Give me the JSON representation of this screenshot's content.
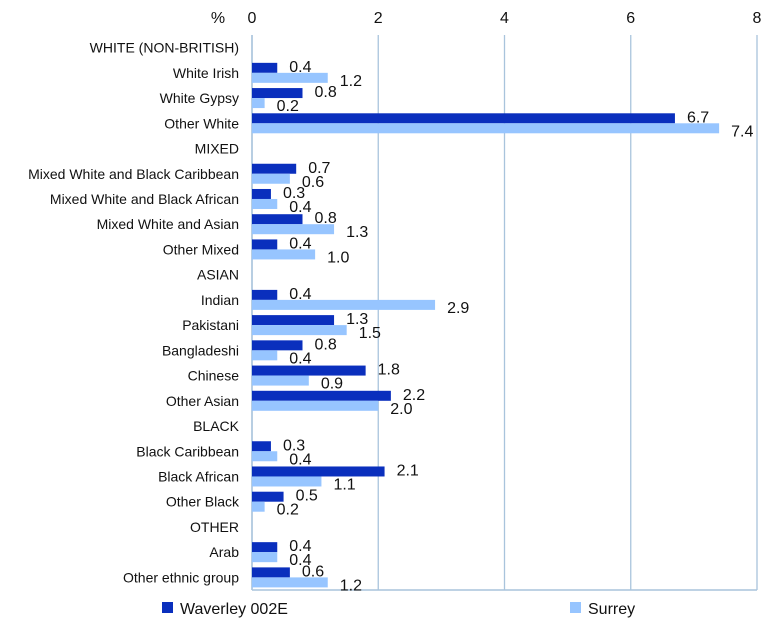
{
  "chart_data": {
    "type": "bar",
    "orientation": "horizontal",
    "unit_label": "%",
    "xlim": [
      0,
      8
    ],
    "x_ticks": [
      "0",
      "2",
      "4",
      "6",
      "8"
    ],
    "grid": "vertical",
    "legend_position": "bottom",
    "categories": [
      "WHITE (NON-BRITISH)",
      "White Irish",
      "White Gypsy",
      "Other White",
      "MIXED",
      "Mixed White and Black Caribbean",
      "Mixed White and Black African",
      "Mixed White and Asian",
      "Other Mixed",
      "ASIAN",
      "Indian",
      "Pakistani",
      "Bangladeshi",
      "Chinese",
      "Other Asian",
      "BLACK",
      "Black Caribbean",
      "Black African",
      "Other Black",
      "OTHER",
      "Arab",
      "Other ethnic group"
    ],
    "series": [
      {
        "name": "Waverley 002E",
        "color": "#0a2fbd",
        "values": [
          null,
          0.4,
          0.8,
          6.7,
          null,
          0.7,
          0.3,
          0.8,
          0.4,
          null,
          0.4,
          1.3,
          0.8,
          1.8,
          2.2,
          null,
          0.3,
          2.1,
          0.5,
          null,
          0.4,
          0.6
        ],
        "labels": [
          null,
          "0.4",
          "0.8",
          "6.7",
          null,
          "0.7",
          "0.3",
          "0.8",
          "0.4",
          null,
          "0.4",
          "1.3",
          "0.8",
          "1.8",
          "2.2",
          null,
          "0.3",
          "2.1",
          "0.5",
          null,
          "0.4",
          "0.6"
        ]
      },
      {
        "name": "Surrey",
        "color": "#97c5ff",
        "values": [
          null,
          1.2,
          0.2,
          7.4,
          null,
          0.6,
          0.4,
          1.3,
          1.0,
          null,
          2.9,
          1.5,
          0.4,
          0.9,
          2.0,
          null,
          0.4,
          1.1,
          0.2,
          null,
          0.4,
          1.2
        ],
        "labels": [
          null,
          "1.2",
          "0.2",
          "7.4",
          null,
          "0.6",
          "0.4",
          "1.3",
          "1.0",
          null,
          "2.9",
          "1.5",
          "0.4",
          "0.9",
          "2.0",
          null,
          "0.4",
          "1.1",
          "0.2",
          null,
          "0.4",
          "1.2"
        ]
      }
    ]
  }
}
